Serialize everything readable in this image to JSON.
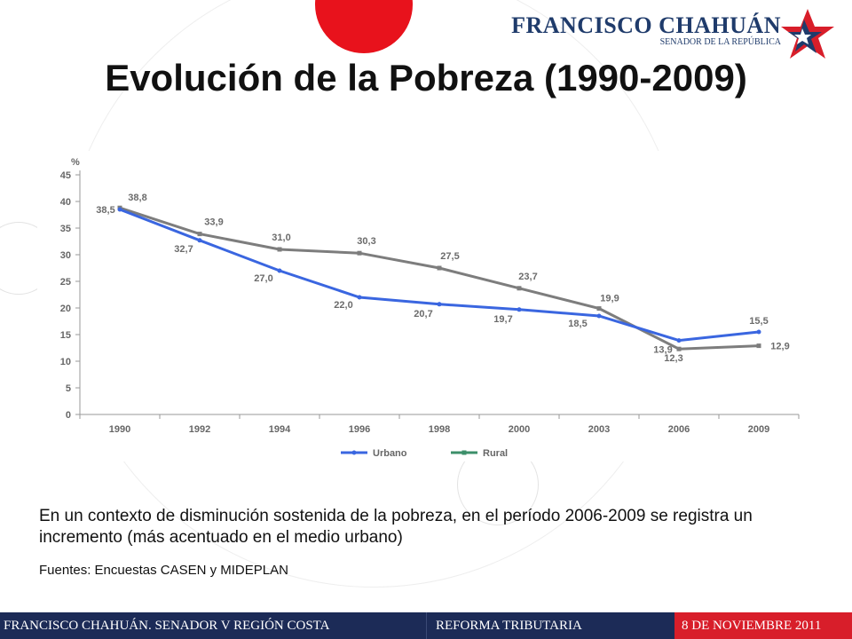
{
  "header": {
    "title": "Evolución de la Pobreza (1990-2009)",
    "brand_name": "FRANCISCO CHAHUÁN",
    "brand_subtitle": "SENADOR DE LA REPÚBLICA"
  },
  "chart_data": {
    "type": "line",
    "title": "",
    "xlabel": "",
    "ylabel": "%",
    "categories": [
      "1990",
      "1992",
      "1994",
      "1996",
      "1998",
      "2000",
      "2003",
      "2006",
      "2009"
    ],
    "yticks": [
      0,
      5,
      10,
      15,
      20,
      25,
      30,
      35,
      40,
      45
    ],
    "ylim": [
      0,
      45
    ],
    "grid": false,
    "legend_position": "bottom",
    "series": [
      {
        "name": "Urbano",
        "color": "#3a66e0",
        "values": [
          38.5,
          32.7,
          27.0,
          22.0,
          20.7,
          19.7,
          18.5,
          13.9,
          15.5
        ],
        "labels": [
          "38,5",
          "32,7",
          "27,0",
          "22,0",
          "20,7",
          "19,7",
          "18,5",
          "13,9",
          "15,5"
        ]
      },
      {
        "name": "Rural",
        "color": "#7d7d7d",
        "legend_color": "#3c8f6a",
        "values": [
          38.8,
          33.9,
          31.0,
          30.3,
          27.5,
          23.7,
          19.9,
          12.3,
          12.9
        ],
        "labels": [
          "38,8",
          "33,9",
          "31,0",
          "30,3",
          "27,5",
          "23,7",
          "19,9",
          "12,3",
          "12,9"
        ]
      }
    ]
  },
  "content": {
    "caption": "En un contexto de disminución sostenida de la pobreza, en el período 2006-2009 se registra un incremento (más acentuado en el medio urbano)",
    "source": "Fuentes: Encuestas CASEN y MIDEPLAN"
  },
  "footer": {
    "left": "FRANCISCO CHAHUÁN. SENADOR V REGIÓN COSTA",
    "middle": "REFORMA TRIBUTARIA",
    "right": "8 DE NOVIEMBRE 2011"
  },
  "colors": {
    "footer_bg": "#1c2b57",
    "footer_accent": "#d81e2a",
    "brand": "#1f3b6b",
    "decor_red": "#e8121c"
  }
}
